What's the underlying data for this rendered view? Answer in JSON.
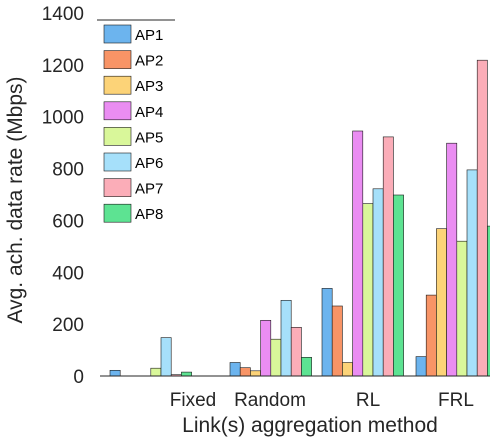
{
  "chart_data": {
    "type": "bar",
    "xlabel": "Link(s) aggregation method",
    "ylabel": "Avg. ach. data rate (Mbps)",
    "ylim": [
      0,
      1400
    ],
    "yticks": [
      0,
      200,
      400,
      600,
      800,
      1000,
      1200,
      1400
    ],
    "categories": [
      "Fixed",
      "Random",
      "RL",
      "FRL"
    ],
    "grid": false,
    "legend_position": "top-left",
    "series": [
      {
        "name": "AP1",
        "color": "#6CB4EE",
        "values": [
          22,
          52,
          338,
          75
        ]
      },
      {
        "name": "AP2",
        "color": "#F89466",
        "values": [
          0,
          32,
          270,
          312
        ]
      },
      {
        "name": "AP3",
        "color": "#FCD378",
        "values": [
          0,
          20,
          52,
          568
        ]
      },
      {
        "name": "AP4",
        "color": "#EA8DF2",
        "values": [
          0,
          215,
          945,
          898
        ]
      },
      {
        "name": "AP5",
        "color": "#D9F79A",
        "values": [
          30,
          142,
          665,
          520
        ]
      },
      {
        "name": "AP6",
        "color": "#A6E0FA",
        "values": [
          148,
          292,
          722,
          795
        ]
      },
      {
        "name": "AP7",
        "color": "#FBADB8",
        "values": [
          5,
          188,
          922,
          1218
        ]
      },
      {
        "name": "AP8",
        "color": "#5DE392",
        "values": [
          15,
          72,
          698,
          578
        ]
      }
    ]
  }
}
